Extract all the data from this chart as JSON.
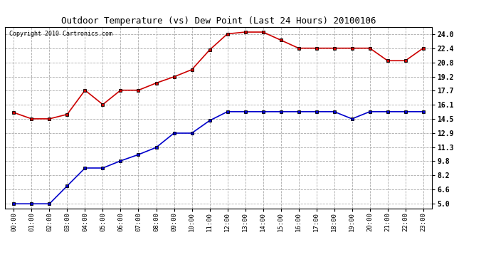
{
  "title": "Outdoor Temperature (vs) Dew Point (Last 24 Hours) 20100106",
  "copyright": "Copyright 2010 Cartronics.com",
  "x_labels": [
    "00:00",
    "01:00",
    "02:00",
    "03:00",
    "04:00",
    "05:00",
    "06:00",
    "07:00",
    "08:00",
    "09:00",
    "10:00",
    "11:00",
    "12:00",
    "13:00",
    "14:00",
    "15:00",
    "16:00",
    "17:00",
    "18:00",
    "19:00",
    "20:00",
    "21:00",
    "22:00",
    "23:00"
  ],
  "temp_data": [
    15.2,
    14.5,
    14.5,
    15.0,
    17.7,
    16.1,
    17.7,
    17.7,
    18.5,
    19.2,
    20.0,
    22.2,
    24.0,
    24.2,
    24.2,
    23.3,
    22.4,
    22.4,
    22.4,
    22.4,
    22.4,
    21.0,
    21.0,
    22.4
  ],
  "dew_data": [
    5.0,
    5.0,
    5.0,
    7.0,
    9.0,
    9.0,
    9.8,
    10.5,
    11.3,
    12.9,
    12.9,
    14.3,
    15.3,
    15.3,
    15.3,
    15.3,
    15.3,
    15.3,
    15.3,
    14.5,
    15.3,
    15.3,
    15.3,
    15.3
  ],
  "temp_color": "#cc0000",
  "dew_color": "#0000cc",
  "marker": "s",
  "marker_color": "#000000",
  "marker_size": 3,
  "line_width": 1.2,
  "y_ticks": [
    5.0,
    6.6,
    8.2,
    9.8,
    11.3,
    12.9,
    14.5,
    16.1,
    17.7,
    19.2,
    20.8,
    22.4,
    24.0
  ],
  "ylim": [
    4.5,
    24.8
  ],
  "grid_color": "#aaaaaa",
  "grid_style": "--",
  "bg_color": "#ffffff",
  "title_fontsize": 9,
  "copyright_fontsize": 6,
  "tick_fontsize": 6.5,
  "ytick_fontsize": 7
}
